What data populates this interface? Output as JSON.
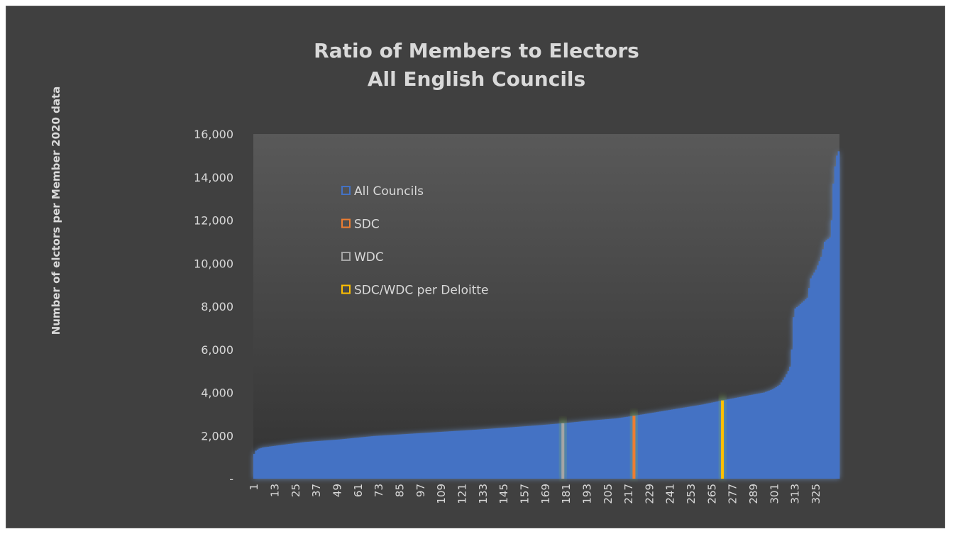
{
  "chart_data": {
    "type": "bar",
    "title": [
      "Ratio of Members to Electors",
      "All English Councils"
    ],
    "ylabel": "Number of elctors per Member 2020 data",
    "xlabel": "",
    "ylim": [
      0,
      16000
    ],
    "y_ticks": [
      0,
      2000,
      4000,
      6000,
      8000,
      10000,
      12000,
      14000,
      16000
    ],
    "y_tick_labels": [
      "-",
      "2,000",
      "4,000",
      "6,000",
      "8,000",
      "10,000",
      "12,000",
      "14,000",
      "16,000"
    ],
    "x_count": 338,
    "x_tick_labels": [
      "1",
      "13",
      "25",
      "37",
      "49",
      "61",
      "73",
      "85",
      "97",
      "109",
      "121",
      "133",
      "145",
      "157",
      "169",
      "181",
      "193",
      "205",
      "217",
      "229",
      "241",
      "253",
      "265",
      "277",
      "289",
      "301",
      "313",
      "325"
    ],
    "sorted": "ascending",
    "curve_points": [
      [
        1,
        1150
      ],
      [
        2,
        1300
      ],
      [
        4,
        1400
      ],
      [
        6,
        1450
      ],
      [
        20,
        1600
      ],
      [
        30,
        1700
      ],
      [
        50,
        1820
      ],
      [
        70,
        1980
      ],
      [
        90,
        2080
      ],
      [
        110,
        2180
      ],
      [
        130,
        2280
      ],
      [
        150,
        2390
      ],
      [
        165,
        2480
      ],
      [
        180,
        2580
      ],
      [
        195,
        2700
      ],
      [
        210,
        2800
      ],
      [
        220,
        2920
      ],
      [
        230,
        3050
      ],
      [
        245,
        3250
      ],
      [
        260,
        3450
      ],
      [
        272,
        3650
      ],
      [
        285,
        3850
      ],
      [
        295,
        4000
      ],
      [
        300,
        4150
      ],
      [
        304,
        4350
      ],
      [
        307,
        4700
      ],
      [
        309,
        5000
      ],
      [
        310,
        5200
      ],
      [
        311,
        6000
      ],
      [
        312,
        7500
      ],
      [
        313,
        7900
      ],
      [
        316,
        8100
      ],
      [
        320,
        8400
      ],
      [
        322,
        9300
      ],
      [
        325,
        9700
      ],
      [
        328,
        10300
      ],
      [
        330,
        11000
      ],
      [
        333,
        11200
      ],
      [
        334,
        12000
      ],
      [
        335,
        13700
      ],
      [
        336,
        14500
      ],
      [
        337,
        15000
      ],
      [
        338,
        15200
      ]
    ],
    "highlights": [
      {
        "name": "SDC",
        "x": 220,
        "color": "#ed7d31"
      },
      {
        "name": "WDC",
        "x": 179,
        "color": "#a5a5a5"
      },
      {
        "name": "SDC/WDC per Deloitte",
        "x": 271,
        "color": "#ffc000"
      }
    ],
    "series": [
      {
        "name": "All Councils",
        "color": "#4472c4"
      },
      {
        "name": "SDC",
        "color": "#ed7d31"
      },
      {
        "name": "WDC",
        "color": "#a5a5a5"
      },
      {
        "name": "SDC/WDC per Deloitte",
        "color": "#ffc000"
      }
    ],
    "legend_position": "top-left inside",
    "grid": false
  }
}
